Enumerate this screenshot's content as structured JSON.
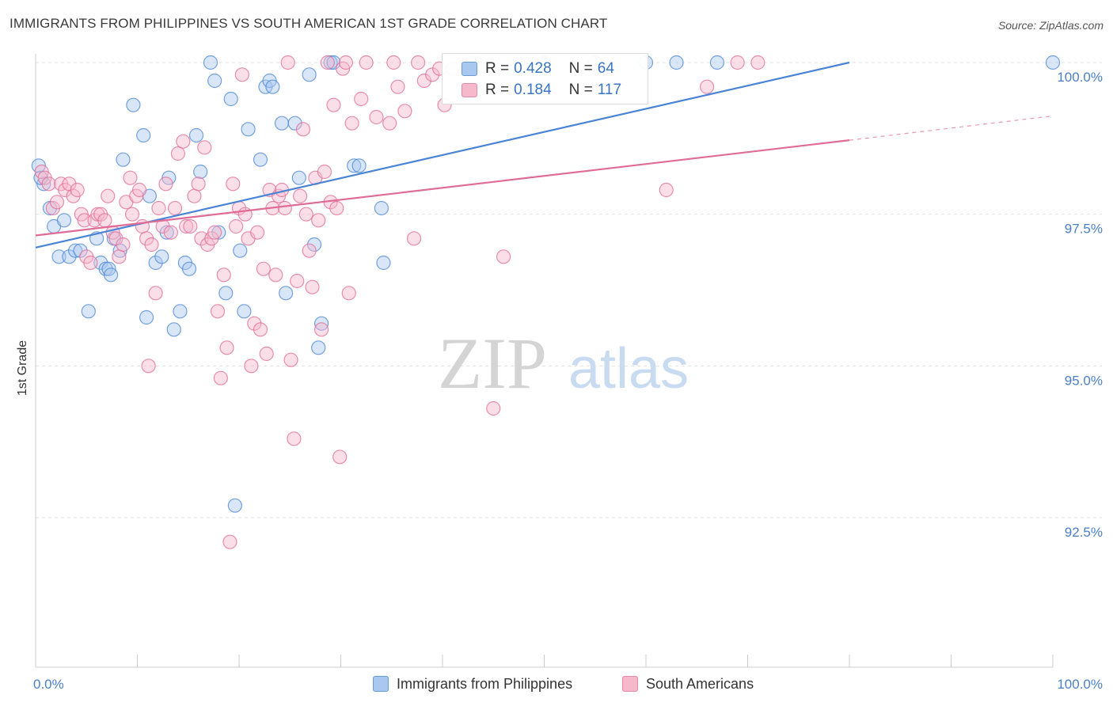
{
  "title": "IMMIGRANTS FROM PHILIPPINES VS SOUTH AMERICAN 1ST GRADE CORRELATION CHART",
  "source": "Source: ZipAtlas.com",
  "watermark": {
    "zip": "ZIP",
    "atlas": "atlas"
  },
  "legend": {
    "rows": [
      {
        "r_label": "R =",
        "r_value": "0.428",
        "n_label": "N =",
        "n_value": "64",
        "color": "#a8c8f0"
      },
      {
        "r_label": "R =",
        "r_value": "0.184",
        "n_label": "N =",
        "n_value": "117",
        "color": "#f6b8cb"
      }
    ]
  },
  "bottom_legend": [
    {
      "label": "Immigrants from Philippines",
      "color": "#a8c8f0"
    },
    {
      "label": "South Americans",
      "color": "#f6b8cb"
    }
  ],
  "chart_data": {
    "type": "scatter",
    "title": "IMMIGRANTS FROM PHILIPPINES VS SOUTH AMERICAN 1ST GRADE CORRELATION CHART",
    "xlabel": "",
    "ylabel": "1st Grade",
    "xlim": [
      0,
      100
    ],
    "ylim": [
      90.5,
      100.3
    ],
    "x_tick_labels": [
      "0.0%",
      "100.0%"
    ],
    "y_ticks": [
      92.5,
      95.0,
      97.5,
      100.0
    ],
    "y_tick_labels": [
      "92.5%",
      "95.0%",
      "97.5%",
      "100.0%"
    ],
    "grid": true,
    "series": [
      {
        "name": "Immigrants from Philippines",
        "color": "#4a84d6",
        "fill": "#a8c8f0",
        "trend": {
          "x0": 0,
          "y0": 96.95,
          "x1": 80,
          "y1": 100.0
        },
        "points": [
          [
            0.3,
            98.3
          ],
          [
            0.8,
            98.0
          ],
          [
            1.4,
            97.6
          ],
          [
            1.8,
            97.3
          ],
          [
            2.3,
            96.8
          ],
          [
            2.8,
            97.4
          ],
          [
            3.3,
            96.8
          ],
          [
            3.9,
            96.9
          ],
          [
            4.4,
            96.9
          ],
          [
            5.2,
            95.9
          ],
          [
            6.0,
            97.1
          ],
          [
            6.4,
            96.7
          ],
          [
            6.9,
            96.6
          ],
          [
            7.2,
            96.6
          ],
          [
            7.4,
            96.5
          ],
          [
            7.7,
            97.1
          ],
          [
            8.3,
            96.9
          ],
          [
            8.6,
            98.4
          ],
          [
            9.6,
            99.3
          ],
          [
            10.6,
            98.8
          ],
          [
            10.9,
            95.8
          ],
          [
            11.2,
            97.8
          ],
          [
            11.8,
            96.7
          ],
          [
            12.4,
            96.8
          ],
          [
            12.9,
            97.2
          ],
          [
            13.1,
            98.1
          ],
          [
            13.6,
            95.6
          ],
          [
            14.2,
            95.9
          ],
          [
            14.7,
            96.7
          ],
          [
            15.1,
            96.6
          ],
          [
            15.8,
            98.8
          ],
          [
            16.2,
            98.2
          ],
          [
            17.2,
            100.0
          ],
          [
            17.6,
            99.7
          ],
          [
            18.0,
            97.2
          ],
          [
            18.7,
            96.2
          ],
          [
            19.2,
            99.4
          ],
          [
            19.6,
            92.7
          ],
          [
            20.1,
            96.9
          ],
          [
            20.5,
            95.9
          ],
          [
            20.9,
            98.9
          ],
          [
            22.1,
            98.4
          ],
          [
            22.6,
            99.6
          ],
          [
            23.0,
            99.7
          ],
          [
            23.3,
            99.6
          ],
          [
            24.2,
            99.0
          ],
          [
            24.6,
            96.2
          ],
          [
            25.5,
            99.0
          ],
          [
            25.9,
            98.1
          ],
          [
            26.9,
            99.8
          ],
          [
            27.4,
            97.0
          ],
          [
            27.8,
            95.3
          ],
          [
            28.1,
            95.7
          ],
          [
            29.0,
            100.0
          ],
          [
            29.3,
            100.0
          ],
          [
            31.3,
            98.3
          ],
          [
            31.8,
            98.3
          ],
          [
            34.0,
            97.6
          ],
          [
            34.2,
            96.7
          ],
          [
            60.0,
            100.0
          ],
          [
            63.0,
            100.0
          ],
          [
            67.0,
            100.0
          ],
          [
            100.0,
            100.0
          ],
          [
            0.5,
            98.1
          ]
        ]
      },
      {
        "name": "South Americans",
        "color": "#e06b96",
        "fill": "#f6b8cb",
        "trend": {
          "x0": 0,
          "y0": 97.15,
          "x1": 80,
          "y1": 98.72,
          "dash_to": {
            "x": 100,
            "y": 99.12
          }
        },
        "points": [
          [
            0.6,
            98.2
          ],
          [
            0.9,
            98.1
          ],
          [
            1.3,
            98.0
          ],
          [
            1.7,
            97.6
          ],
          [
            2.1,
            97.7
          ],
          [
            2.5,
            98.0
          ],
          [
            2.9,
            97.9
          ],
          [
            3.3,
            98.0
          ],
          [
            3.7,
            97.8
          ],
          [
            4.1,
            97.9
          ],
          [
            4.5,
            97.5
          ],
          [
            4.8,
            97.4
          ],
          [
            5.0,
            96.8
          ],
          [
            5.4,
            96.7
          ],
          [
            5.8,
            97.4
          ],
          [
            6.1,
            97.5
          ],
          [
            6.4,
            97.5
          ],
          [
            6.8,
            97.4
          ],
          [
            7.1,
            97.8
          ],
          [
            7.6,
            97.2
          ],
          [
            7.9,
            97.1
          ],
          [
            8.2,
            96.8
          ],
          [
            8.6,
            97.0
          ],
          [
            8.9,
            97.7
          ],
          [
            9.3,
            98.1
          ],
          [
            9.5,
            97.5
          ],
          [
            9.9,
            97.8
          ],
          [
            10.2,
            97.9
          ],
          [
            10.5,
            97.3
          ],
          [
            10.9,
            97.1
          ],
          [
            11.1,
            95.0
          ],
          [
            11.4,
            97.0
          ],
          [
            11.8,
            96.2
          ],
          [
            12.1,
            97.6
          ],
          [
            12.5,
            97.3
          ],
          [
            12.8,
            98.0
          ],
          [
            13.3,
            97.2
          ],
          [
            13.7,
            97.6
          ],
          [
            14.0,
            98.5
          ],
          [
            14.5,
            98.7
          ],
          [
            14.8,
            97.3
          ],
          [
            15.2,
            97.3
          ],
          [
            15.6,
            97.8
          ],
          [
            16.0,
            98.0
          ],
          [
            16.3,
            97.1
          ],
          [
            16.6,
            98.6
          ],
          [
            16.9,
            97.0
          ],
          [
            17.3,
            97.1
          ],
          [
            17.6,
            97.2
          ],
          [
            17.9,
            95.9
          ],
          [
            18.2,
            94.8
          ],
          [
            18.5,
            96.5
          ],
          [
            18.8,
            95.3
          ],
          [
            19.1,
            92.1
          ],
          [
            19.4,
            98.0
          ],
          [
            19.7,
            97.3
          ],
          [
            20.0,
            97.6
          ],
          [
            20.3,
            99.8
          ],
          [
            20.6,
            97.5
          ],
          [
            20.9,
            97.1
          ],
          [
            21.2,
            95.0
          ],
          [
            21.5,
            95.7
          ],
          [
            21.8,
            97.2
          ],
          [
            22.1,
            95.6
          ],
          [
            22.4,
            96.6
          ],
          [
            22.7,
            95.2
          ],
          [
            23.0,
            97.9
          ],
          [
            23.3,
            97.6
          ],
          [
            23.6,
            96.5
          ],
          [
            23.9,
            97.8
          ],
          [
            24.2,
            97.9
          ],
          [
            24.5,
            97.6
          ],
          [
            24.8,
            100.0
          ],
          [
            25.1,
            95.1
          ],
          [
            25.4,
            93.8
          ],
          [
            25.7,
            96.4
          ],
          [
            26.0,
            97.8
          ],
          [
            26.3,
            98.9
          ],
          [
            26.6,
            97.5
          ],
          [
            26.9,
            96.9
          ],
          [
            27.2,
            96.3
          ],
          [
            27.5,
            98.1
          ],
          [
            27.8,
            97.4
          ],
          [
            28.1,
            95.6
          ],
          [
            28.4,
            98.2
          ],
          [
            28.7,
            100.0
          ],
          [
            29.0,
            97.7
          ],
          [
            29.3,
            99.3
          ],
          [
            29.6,
            97.6
          ],
          [
            29.9,
            93.5
          ],
          [
            30.2,
            99.9
          ],
          [
            30.5,
            100.0
          ],
          [
            30.8,
            96.2
          ],
          [
            31.1,
            99.0
          ],
          [
            32.0,
            99.4
          ],
          [
            32.5,
            100.0
          ],
          [
            33.5,
            99.1
          ],
          [
            34.8,
            99.0
          ],
          [
            35.2,
            100.0
          ],
          [
            35.6,
            99.6
          ],
          [
            36.3,
            99.2
          ],
          [
            37.2,
            97.1
          ],
          [
            37.6,
            100.0
          ],
          [
            38.2,
            99.7
          ],
          [
            39.0,
            99.8
          ],
          [
            39.7,
            99.9
          ],
          [
            40.2,
            99.3
          ],
          [
            41.0,
            99.9
          ],
          [
            42.5,
            99.9
          ],
          [
            43.0,
            100.0
          ],
          [
            45.0,
            94.3
          ],
          [
            46.0,
            96.8
          ],
          [
            50.0,
            100.0
          ],
          [
            55.0,
            100.0
          ],
          [
            62.0,
            97.9
          ],
          [
            66.0,
            99.6
          ],
          [
            69.0,
            100.0
          ],
          [
            71.0,
            100.0
          ]
        ]
      }
    ]
  }
}
